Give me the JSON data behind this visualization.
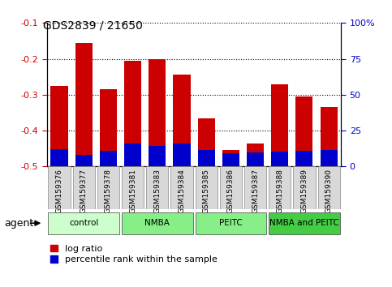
{
  "title": "GDS2839 / 21650",
  "samples": [
    "GSM159376",
    "GSM159377",
    "GSM159378",
    "GSM159381",
    "GSM159383",
    "GSM159384",
    "GSM159385",
    "GSM159386",
    "GSM159387",
    "GSM159388",
    "GSM159389",
    "GSM159390"
  ],
  "log_ratio": [
    -0.275,
    -0.155,
    -0.285,
    -0.205,
    -0.2,
    -0.245,
    -0.365,
    -0.455,
    -0.435,
    -0.27,
    -0.305,
    -0.335
  ],
  "pct_rank_pct": [
    12,
    8,
    11,
    16,
    14.5,
    16,
    11.5,
    9,
    10,
    10.5,
    11,
    11.5
  ],
  "groups": [
    {
      "label": "control",
      "start": 0,
      "end": 3,
      "color": "#ccffcc"
    },
    {
      "label": "NMBA",
      "start": 3,
      "end": 6,
      "color": "#88ee88"
    },
    {
      "label": "PEITC",
      "start": 6,
      "end": 9,
      "color": "#88ee88"
    },
    {
      "label": "NMBA and PEITC",
      "start": 9,
      "end": 12,
      "color": "#44cc44"
    }
  ],
  "ylim_left": [
    -0.5,
    -0.1
  ],
  "ylim_right": [
    0,
    100
  ],
  "yticks_left": [
    -0.5,
    -0.4,
    -0.3,
    -0.2,
    -0.1
  ],
  "yticks_right": [
    0,
    25,
    50,
    75,
    100
  ],
  "ytick_labels_right": [
    "0",
    "25",
    "50",
    "75",
    "100%"
  ],
  "bar_color_red": "#cc0000",
  "bar_color_blue": "#0000cc",
  "bg_color": "#ffffff",
  "tick_label_color_left": "#cc0000",
  "tick_label_color_right": "#0000cc",
  "legend_red": "log ratio",
  "legend_blue": "percentile rank within the sample"
}
